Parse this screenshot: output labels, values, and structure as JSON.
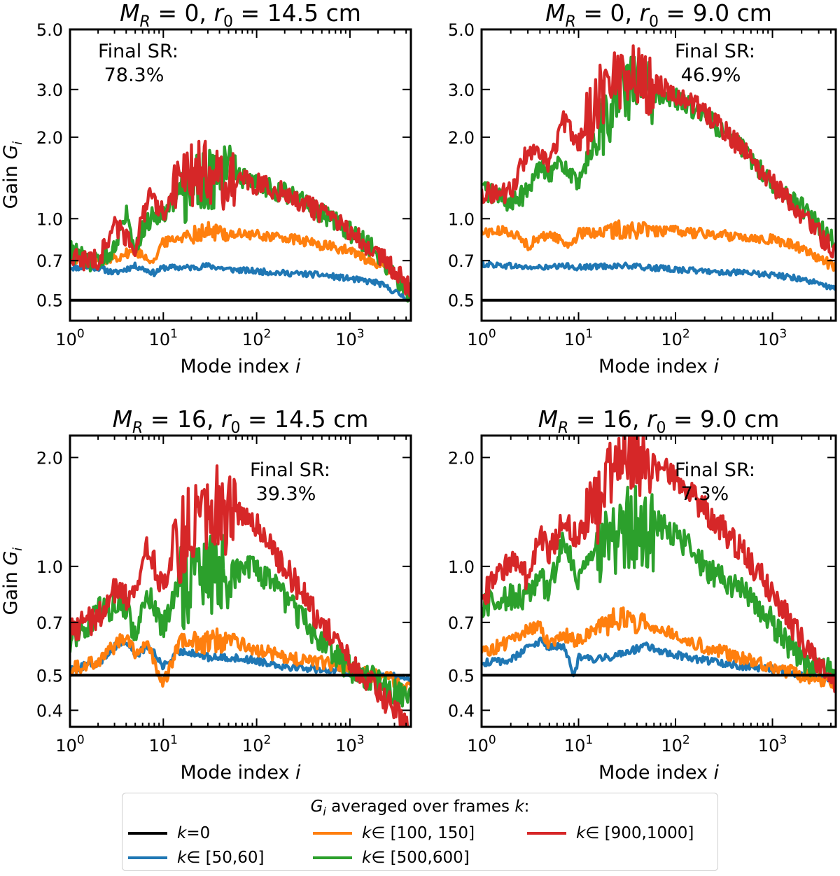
{
  "chart_data": [
    {
      "type": "line",
      "title": "M_R = 0, r_0 = 14.5 cm",
      "title_parts": {
        "m": "M",
        "m_sub": "R",
        "m_rest": " = 0, ",
        "r": "r",
        "r_sub": "0",
        "r_rest": " = 14.5 cm"
      },
      "xlabel": "Mode index i",
      "ylabel": "Gain G_i",
      "xscale": "log",
      "yscale": "log",
      "xlim": [
        1,
        4500
      ],
      "ylim": [
        0.42,
        5.0
      ],
      "yticks": [
        "0.5",
        "0.7",
        "1.0",
        "2.0",
        "3.0",
        "5.0"
      ],
      "annotation": "Final SR:\n78.3%",
      "annotation_lines": [
        "Final SR:",
        " 78.3%"
      ],
      "annotation_position": "top-left",
      "series": [
        {
          "key": "k0",
          "x": [
            1,
            4500
          ],
          "y": [
            0.5,
            0.5
          ]
        },
        {
          "key": "k50",
          "x": [
            1,
            2,
            3,
            5,
            8,
            10,
            20,
            30,
            50,
            100,
            200,
            500,
            1000,
            2000,
            4500
          ],
          "y": [
            0.66,
            0.66,
            0.63,
            0.67,
            0.63,
            0.66,
            0.66,
            0.67,
            0.65,
            0.64,
            0.63,
            0.62,
            0.6,
            0.58,
            0.5
          ]
        },
        {
          "key": "k100",
          "x": [
            1,
            2,
            3,
            5,
            8,
            10,
            20,
            30,
            50,
            100,
            200,
            500,
            1000,
            2000,
            4500
          ],
          "y": [
            0.72,
            0.7,
            0.72,
            0.76,
            0.7,
            0.82,
            0.88,
            0.9,
            0.88,
            0.87,
            0.85,
            0.8,
            0.76,
            0.68,
            0.56
          ]
        },
        {
          "key": "k500",
          "x": [
            1,
            2,
            3,
            4,
            5,
            7,
            10,
            15,
            20,
            30,
            50,
            100,
            200,
            500,
            1000,
            2000,
            4500
          ],
          "y": [
            0.76,
            0.68,
            0.8,
            1.05,
            0.8,
            1.0,
            1.05,
            1.25,
            1.4,
            1.45,
            1.5,
            1.35,
            1.25,
            1.05,
            0.9,
            0.75,
            0.52
          ]
        },
        {
          "key": "k900",
          "x": [
            1,
            2,
            3,
            5,
            7,
            10,
            15,
            20,
            30,
            50,
            100,
            200,
            500,
            1000,
            2000,
            4500
          ],
          "y": [
            0.72,
            0.7,
            0.95,
            0.8,
            1.2,
            1.05,
            1.4,
            1.5,
            1.55,
            1.42,
            1.35,
            1.25,
            1.05,
            0.9,
            0.75,
            0.55
          ]
        }
      ]
    },
    {
      "type": "line",
      "title": "M_R = 0, r_0 = 9.0 cm",
      "title_parts": {
        "m": "M",
        "m_sub": "R",
        "m_rest": " = 0, ",
        "r": "r",
        "r_sub": "0",
        "r_rest": " = 9.0 cm"
      },
      "xlabel": "Mode index i",
      "ylabel": "",
      "xscale": "log",
      "yscale": "log",
      "xlim": [
        1,
        4500
      ],
      "ylim": [
        0.42,
        5.0
      ],
      "yticks": [
        "0.5",
        "0.7",
        "1.0",
        "2.0",
        "3.0",
        "5.0"
      ],
      "annotation": "Final SR:\n46.9%",
      "annotation_lines": [
        "Final SR:",
        " 46.9%"
      ],
      "annotation_position": "top-right",
      "series": [
        {
          "key": "k0",
          "x": [
            1,
            4500
          ],
          "y": [
            0.5,
            0.5
          ]
        },
        {
          "key": "k50",
          "x": [
            1,
            2,
            3,
            5,
            8,
            10,
            20,
            30,
            50,
            100,
            200,
            500,
            1000,
            2000,
            4500
          ],
          "y": [
            0.68,
            0.67,
            0.66,
            0.66,
            0.67,
            0.66,
            0.67,
            0.67,
            0.66,
            0.65,
            0.64,
            0.63,
            0.62,
            0.6,
            0.55
          ]
        },
        {
          "key": "k100",
          "x": [
            1,
            2,
            3,
            5,
            8,
            10,
            20,
            30,
            50,
            100,
            200,
            500,
            1000,
            2000,
            4500
          ],
          "y": [
            0.89,
            0.9,
            0.8,
            0.88,
            0.8,
            0.88,
            0.9,
            0.92,
            0.9,
            0.9,
            0.88,
            0.86,
            0.84,
            0.78,
            0.66
          ]
        },
        {
          "key": "k500",
          "x": [
            1,
            2,
            3,
            4,
            5,
            7,
            10,
            12,
            15,
            20,
            30,
            40,
            50,
            100,
            200,
            500,
            1000,
            2000,
            4500
          ],
          "y": [
            1.3,
            1.15,
            1.25,
            1.6,
            1.5,
            1.6,
            1.3,
            1.6,
            2.0,
            2.5,
            3.0,
            3.3,
            3.0,
            2.8,
            2.4,
            1.8,
            1.35,
            1.1,
            0.8
          ]
        },
        {
          "key": "k900",
          "x": [
            1,
            2,
            3,
            5,
            7,
            10,
            15,
            20,
            30,
            50,
            100,
            200,
            500,
            1000,
            2000,
            4500
          ],
          "y": [
            1.25,
            1.25,
            1.8,
            1.6,
            2.3,
            1.9,
            2.8,
            3.2,
            3.6,
            3.3,
            2.9,
            2.5,
            1.8,
            1.35,
            1.05,
            0.75
          ]
        }
      ]
    },
    {
      "type": "line",
      "title": "M_R = 16, r_0 = 14.5 cm",
      "title_parts": {
        "m": "M",
        "m_sub": "R",
        "m_rest": " = 16, ",
        "r": "r",
        "r_sub": "0",
        "r_rest": " = 14.5 cm"
      },
      "xlabel": "Mode index i",
      "ylabel": "Gain G_i",
      "xscale": "log",
      "yscale": "log",
      "xlim": [
        1,
        4500
      ],
      "ylim": [
        0.36,
        2.3
      ],
      "yticks": [
        "0.4",
        "0.5",
        "0.7",
        "1.0",
        "2.0"
      ],
      "annotation": "Final SR:\n39.3%",
      "annotation_lines": [
        "Final SR:",
        " 39.3%"
      ],
      "annotation_position": "top-right",
      "series": [
        {
          "key": "k0",
          "x": [
            1,
            4500
          ],
          "y": [
            0.5,
            0.5
          ]
        },
        {
          "key": "k50",
          "x": [
            1,
            2,
            3,
            4,
            5,
            7,
            10,
            15,
            20,
            30,
            50,
            100,
            200,
            500,
            1000,
            2000,
            4500
          ],
          "y": [
            0.52,
            0.54,
            0.6,
            0.62,
            0.57,
            0.6,
            0.53,
            0.58,
            0.58,
            0.56,
            0.56,
            0.55,
            0.53,
            0.52,
            0.51,
            0.5,
            0.49
          ]
        },
        {
          "key": "k100",
          "x": [
            1,
            2,
            3,
            4,
            5,
            7,
            10,
            15,
            20,
            30,
            50,
            100,
            200,
            500,
            1000,
            2000,
            4500
          ],
          "y": [
            0.52,
            0.55,
            0.6,
            0.65,
            0.58,
            0.6,
            0.47,
            0.62,
            0.63,
            0.62,
            0.63,
            0.59,
            0.56,
            0.54,
            0.52,
            0.5,
            0.47
          ]
        },
        {
          "key": "k500",
          "x": [
            1,
            2,
            3,
            4,
            5,
            7,
            10,
            15,
            20,
            30,
            50,
            100,
            200,
            500,
            1000,
            2000,
            4500
          ],
          "y": [
            0.63,
            0.75,
            0.78,
            0.78,
            0.65,
            0.82,
            0.68,
            0.9,
            0.95,
            0.98,
            1.0,
            0.98,
            0.82,
            0.62,
            0.52,
            0.48,
            0.42
          ]
        },
        {
          "key": "k900",
          "x": [
            1,
            2,
            3,
            4,
            5,
            7,
            10,
            15,
            20,
            30,
            50,
            100,
            200,
            500,
            1000,
            2000,
            4500
          ],
          "y": [
            0.68,
            0.72,
            0.87,
            0.82,
            0.9,
            1.15,
            0.85,
            1.2,
            1.35,
            1.55,
            1.45,
            1.3,
            1.0,
            0.7,
            0.54,
            0.45,
            0.36
          ]
        }
      ]
    },
    {
      "type": "line",
      "title": "M_R = 16, r_0 = 9.0 cm",
      "title_parts": {
        "m": "M",
        "m_sub": "R",
        "m_rest": " = 16, ",
        "r": "r",
        "r_sub": "0",
        "r_rest": " = 9.0 cm"
      },
      "xlabel": "Mode index i",
      "ylabel": "",
      "xscale": "log",
      "yscale": "log",
      "xlim": [
        1,
        4500
      ],
      "ylim": [
        0.36,
        2.3
      ],
      "yticks": [
        "0.4",
        "0.5",
        "0.7",
        "1.0",
        "2.0"
      ],
      "annotation": "Final SR:\n7.3%",
      "annotation_lines": [
        "Final SR:",
        " 7.3%"
      ],
      "annotation_position": "top-right",
      "series": [
        {
          "key": "k0",
          "x": [
            1,
            4500
          ],
          "y": [
            0.5,
            0.5
          ]
        },
        {
          "key": "k50",
          "x": [
            1,
            2,
            3,
            4,
            5,
            7,
            9,
            10,
            15,
            20,
            30,
            50,
            100,
            200,
            500,
            1000,
            2000,
            4500
          ],
          "y": [
            0.54,
            0.55,
            0.6,
            0.62,
            0.6,
            0.6,
            0.5,
            0.56,
            0.55,
            0.56,
            0.58,
            0.6,
            0.57,
            0.55,
            0.53,
            0.52,
            0.5,
            0.49
          ]
        },
        {
          "key": "k100",
          "x": [
            1,
            2,
            3,
            4,
            5,
            7,
            10,
            15,
            20,
            30,
            50,
            100,
            200,
            500,
            1000,
            2000,
            4500
          ],
          "y": [
            0.58,
            0.62,
            0.67,
            0.68,
            0.6,
            0.65,
            0.62,
            0.68,
            0.7,
            0.72,
            0.7,
            0.65,
            0.6,
            0.56,
            0.53,
            0.5,
            0.48
          ]
        },
        {
          "key": "k500",
          "x": [
            1,
            2,
            3,
            4,
            5,
            7,
            10,
            15,
            20,
            30,
            50,
            100,
            200,
            500,
            1000,
            2000,
            4500
          ],
          "y": [
            0.78,
            0.83,
            0.83,
            0.92,
            0.85,
            1.2,
            0.9,
            1.1,
            1.25,
            1.3,
            1.35,
            1.25,
            1.0,
            0.85,
            0.7,
            0.55,
            0.5
          ]
        },
        {
          "key": "k900",
          "x": [
            1,
            2,
            3,
            4,
            5,
            7,
            10,
            15,
            20,
            30,
            50,
            100,
            200,
            500,
            1000,
            2000,
            4500
          ],
          "y": [
            0.82,
            1.05,
            0.92,
            1.2,
            1.1,
            1.35,
            1.2,
            1.5,
            1.8,
            2.1,
            2.0,
            1.75,
            1.45,
            1.1,
            0.85,
            0.62,
            0.48
          ]
        }
      ]
    }
  ],
  "x_tick_labels": [
    {
      "base": "10",
      "exp": "0"
    },
    {
      "base": "10",
      "exp": "1"
    },
    {
      "base": "10",
      "exp": "2"
    },
    {
      "base": "10",
      "exp": "3"
    }
  ],
  "ylabel_parts": {
    "text": "Gain ",
    "g": "G",
    "sub": "i"
  },
  "xlabel_parts": {
    "text": "Mode index ",
    "i": "i"
  },
  "legend": {
    "title": "G_i averaged over frames k:",
    "title_parts": {
      "g": "G",
      "g_sub": "i",
      "rest": " averaged over frames ",
      "k": "k",
      "colon": ":"
    },
    "placement": "bottom-center",
    "entries": [
      {
        "key": "k0",
        "label": "k=0",
        "k": "k",
        "rest": "=0",
        "color": "#000000"
      },
      {
        "key": "k50",
        "label": "k∈ [50,60]",
        "k": "k",
        "rest": "∈ [50,60]",
        "color": "#1f77b4"
      },
      {
        "key": "k100",
        "label": "k∈ [100, 150]",
        "k": "k",
        "rest": "∈ [100, 150]",
        "color": "#ff7f0e"
      },
      {
        "key": "k500",
        "label": "k∈ [500,600]",
        "k": "k",
        "rest": "∈ [500,600]",
        "color": "#2ca02c"
      },
      {
        "key": "k900",
        "label": "k∈ [900,1000]",
        "k": "k",
        "rest": "∈ [900,1000]",
        "color": "#d62728"
      }
    ]
  }
}
